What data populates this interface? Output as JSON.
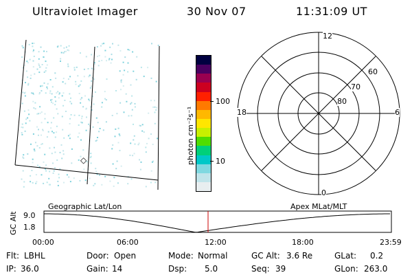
{
  "header": {
    "instrument": "Ultraviolet Imager",
    "date": "30 Nov 07",
    "time": "11:31:09 UT"
  },
  "geo_panel": {
    "marker": "◇"
  },
  "colorbar": {
    "unit_label": "photon cm⁻²s⁻¹",
    "tick_100": "100",
    "tick_10": "10",
    "colors": [
      "#000040",
      "#4a0060",
      "#9a0050",
      "#cc0020",
      "#ff2000",
      "#ff7a00",
      "#ffb800",
      "#ffe600",
      "#c8f000",
      "#50dd00",
      "#00d07a",
      "#00c8c8",
      "#80d8e0",
      "#c0e4ea",
      "#e8eef0"
    ]
  },
  "polar_plot": {
    "mlt_top": "12",
    "mlt_bottom": "0",
    "mlt_left": "18",
    "mlt_right": "6",
    "lat_60": "60",
    "lat_70": "70",
    "lat_80": "80"
  },
  "altitude_strip": {
    "left_title": "Geographic Lat/Lon",
    "right_title": "Apex MLat/MLT",
    "axis_label": "GC Alt",
    "y_top": "9.0",
    "y_bottom": "1.8",
    "time_ticks": [
      "00:00",
      "06:00",
      "12:00",
      "18:00",
      "23:59"
    ],
    "cursor_color": "#cc0000"
  },
  "status": {
    "flt_label": "Flt:",
    "flt_value": "LBHL",
    "door_label": "Door:",
    "door_value": "Open",
    "mode_label": "Mode:",
    "mode_value": "Normal",
    "gcalt_label": "GC Alt:",
    "gcalt_value": "3.6 Re",
    "glat_label": "GLat:",
    "glat_value": "0.2",
    "ip_label": "IP:",
    "ip_value": "36.0",
    "gain_label": "Gain:",
    "gain_value": "14",
    "dsp_label": "Dsp:",
    "dsp_value": "5.0",
    "seq_label": "Seq:",
    "seq_value": "39",
    "glon_label": "GLon:",
    "glon_value": "263.0"
  }
}
